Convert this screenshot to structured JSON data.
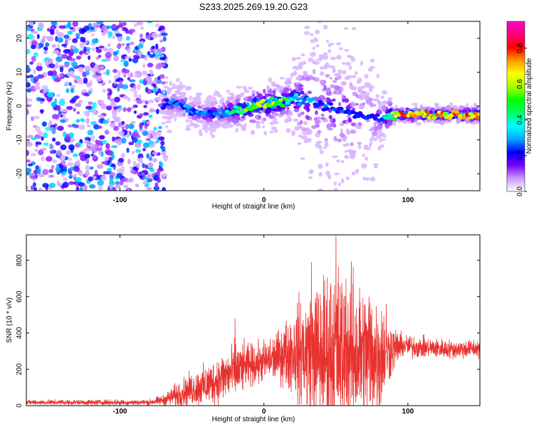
{
  "page": {
    "title": "S233.2025.269.19.20.G23"
  },
  "colors": {
    "snr_line": "#e8322f",
    "axis": "#000000",
    "background": "#ffffff"
  },
  "chart_data": [
    {
      "type": "heatmap",
      "title": "S233.2025.269.19.20.G23",
      "xlabel": "Height of straight line (km)",
      "ylabel": "Frequency (Hz)",
      "xlim": [
        -165,
        150
      ],
      "ylim": [
        -25,
        25
      ],
      "x_ticks": [
        -100,
        0,
        100
      ],
      "x_tick_labels": [
        "-100",
        "0",
        "100"
      ],
      "y_ticks": [
        -20,
        -10,
        0,
        10,
        20
      ],
      "y_tick_labels": [
        "-20",
        "-10",
        "0",
        "10",
        "20"
      ],
      "colorbar": {
        "label": "Normalized spectral amplitude",
        "range": [
          0,
          0.95
        ],
        "ticks": [
          0.0,
          0.2,
          0.4,
          0.6,
          0.8
        ],
        "tick_labels": [
          "0.0",
          "0.2",
          "0.4",
          "0.6",
          "0.8"
        ],
        "colormap": [
          "#ffffff",
          "#cc99ff",
          "#7700ff",
          "#0000ff",
          "#00aaff",
          "#00ffff",
          "#00ff66",
          "#00ff00",
          "#aaff00",
          "#ffff00",
          "#ff9900",
          "#ff0000",
          "#ff0077",
          "#ff00cc"
        ]
      },
      "ridge": [
        {
          "x": -68,
          "freq": 0.5,
          "amp": 0.25
        },
        {
          "x": -60,
          "freq": 1.0,
          "amp": 0.3
        },
        {
          "x": -50,
          "freq": -1.5,
          "amp": 0.3
        },
        {
          "x": -40,
          "freq": -2.5,
          "amp": 0.28
        },
        {
          "x": -30,
          "freq": -2.0,
          "amp": 0.3
        },
        {
          "x": -20,
          "freq": -1.5,
          "amp": 0.45
        },
        {
          "x": -10,
          "freq": -0.5,
          "amp": 0.6
        },
        {
          "x": 0,
          "freq": 0.5,
          "amp": 0.65
        },
        {
          "x": 10,
          "freq": 1.0,
          "amp": 0.6
        },
        {
          "x": 20,
          "freq": 2.0,
          "amp": 0.4
        },
        {
          "x": 30,
          "freq": 1.5,
          "amp": 0.3
        },
        {
          "x": 40,
          "freq": 0.0,
          "amp": 0.25
        },
        {
          "x": 55,
          "freq": -1.5,
          "amp": 0.25
        },
        {
          "x": 70,
          "freq": -3.0,
          "amp": 0.22
        },
        {
          "x": 82,
          "freq": -3.5,
          "amp": 0.25
        },
        {
          "x": 88,
          "freq": -2.5,
          "amp": 0.55
        },
        {
          "x": 100,
          "freq": -2.5,
          "amp": 0.85
        },
        {
          "x": 115,
          "freq": -2.5,
          "amp": 0.7
        },
        {
          "x": 130,
          "freq": -2.5,
          "amp": 0.75
        },
        {
          "x": 148,
          "freq": -2.5,
          "amp": 0.8
        }
      ]
    },
    {
      "type": "line",
      "xlabel": "Height of straight line (km)",
      "ylabel": "SNR (10 * v/v)",
      "xlim": [
        -165,
        150
      ],
      "ylim": [
        0,
        940
      ],
      "x_ticks": [
        -100,
        0,
        100
      ],
      "x_tick_labels": [
        "-100",
        "0",
        "100"
      ],
      "y_ticks": [
        0,
        200,
        400,
        600,
        800
      ],
      "y_tick_labels": [
        "0",
        "200",
        "400",
        "600",
        "800"
      ],
      "series": [
        {
          "name": "SNR",
          "envelope": [
            {
              "x": -165,
              "mean": 18,
              "spread": 12
            },
            {
              "x": -80,
              "mean": 18,
              "spread": 14
            },
            {
              "x": -70,
              "mean": 30,
              "spread": 25
            },
            {
              "x": -60,
              "mean": 60,
              "spread": 60
            },
            {
              "x": -50,
              "mean": 90,
              "spread": 80
            },
            {
              "x": -40,
              "mean": 110,
              "spread": 100
            },
            {
              "x": -30,
              "mean": 150,
              "spread": 120
            },
            {
              "x": -20,
              "mean": 190,
              "spread": 140
            },
            {
              "x": -10,
              "mean": 220,
              "spread": 100
            },
            {
              "x": 0,
              "mean": 240,
              "spread": 100
            },
            {
              "x": 10,
              "mean": 270,
              "spread": 120
            },
            {
              "x": 20,
              "mean": 300,
              "spread": 200
            },
            {
              "x": 30,
              "mean": 290,
              "spread": 300
            },
            {
              "x": 40,
              "mean": 280,
              "spread": 380
            },
            {
              "x": 50,
              "mean": 300,
              "spread": 420
            },
            {
              "x": 60,
              "mean": 290,
              "spread": 380
            },
            {
              "x": 70,
              "mean": 280,
              "spread": 340
            },
            {
              "x": 80,
              "mean": 280,
              "spread": 300
            },
            {
              "x": 86,
              "mean": 300,
              "spread": 160
            },
            {
              "x": 95,
              "mean": 330,
              "spread": 60
            },
            {
              "x": 110,
              "mean": 320,
              "spread": 50
            },
            {
              "x": 130,
              "mean": 310,
              "spread": 45
            },
            {
              "x": 150,
              "mean": 315,
              "spread": 45
            }
          ],
          "peaks": [
            {
              "x": -20,
              "value": 480
            },
            {
              "x": 50,
              "value": 935
            },
            {
              "x": 33,
              "value": 790
            },
            {
              "x": 57,
              "value": 700
            },
            {
              "x": 73,
              "value": 600
            },
            {
              "x": 85,
              "value": 560
            }
          ]
        }
      ]
    }
  ]
}
